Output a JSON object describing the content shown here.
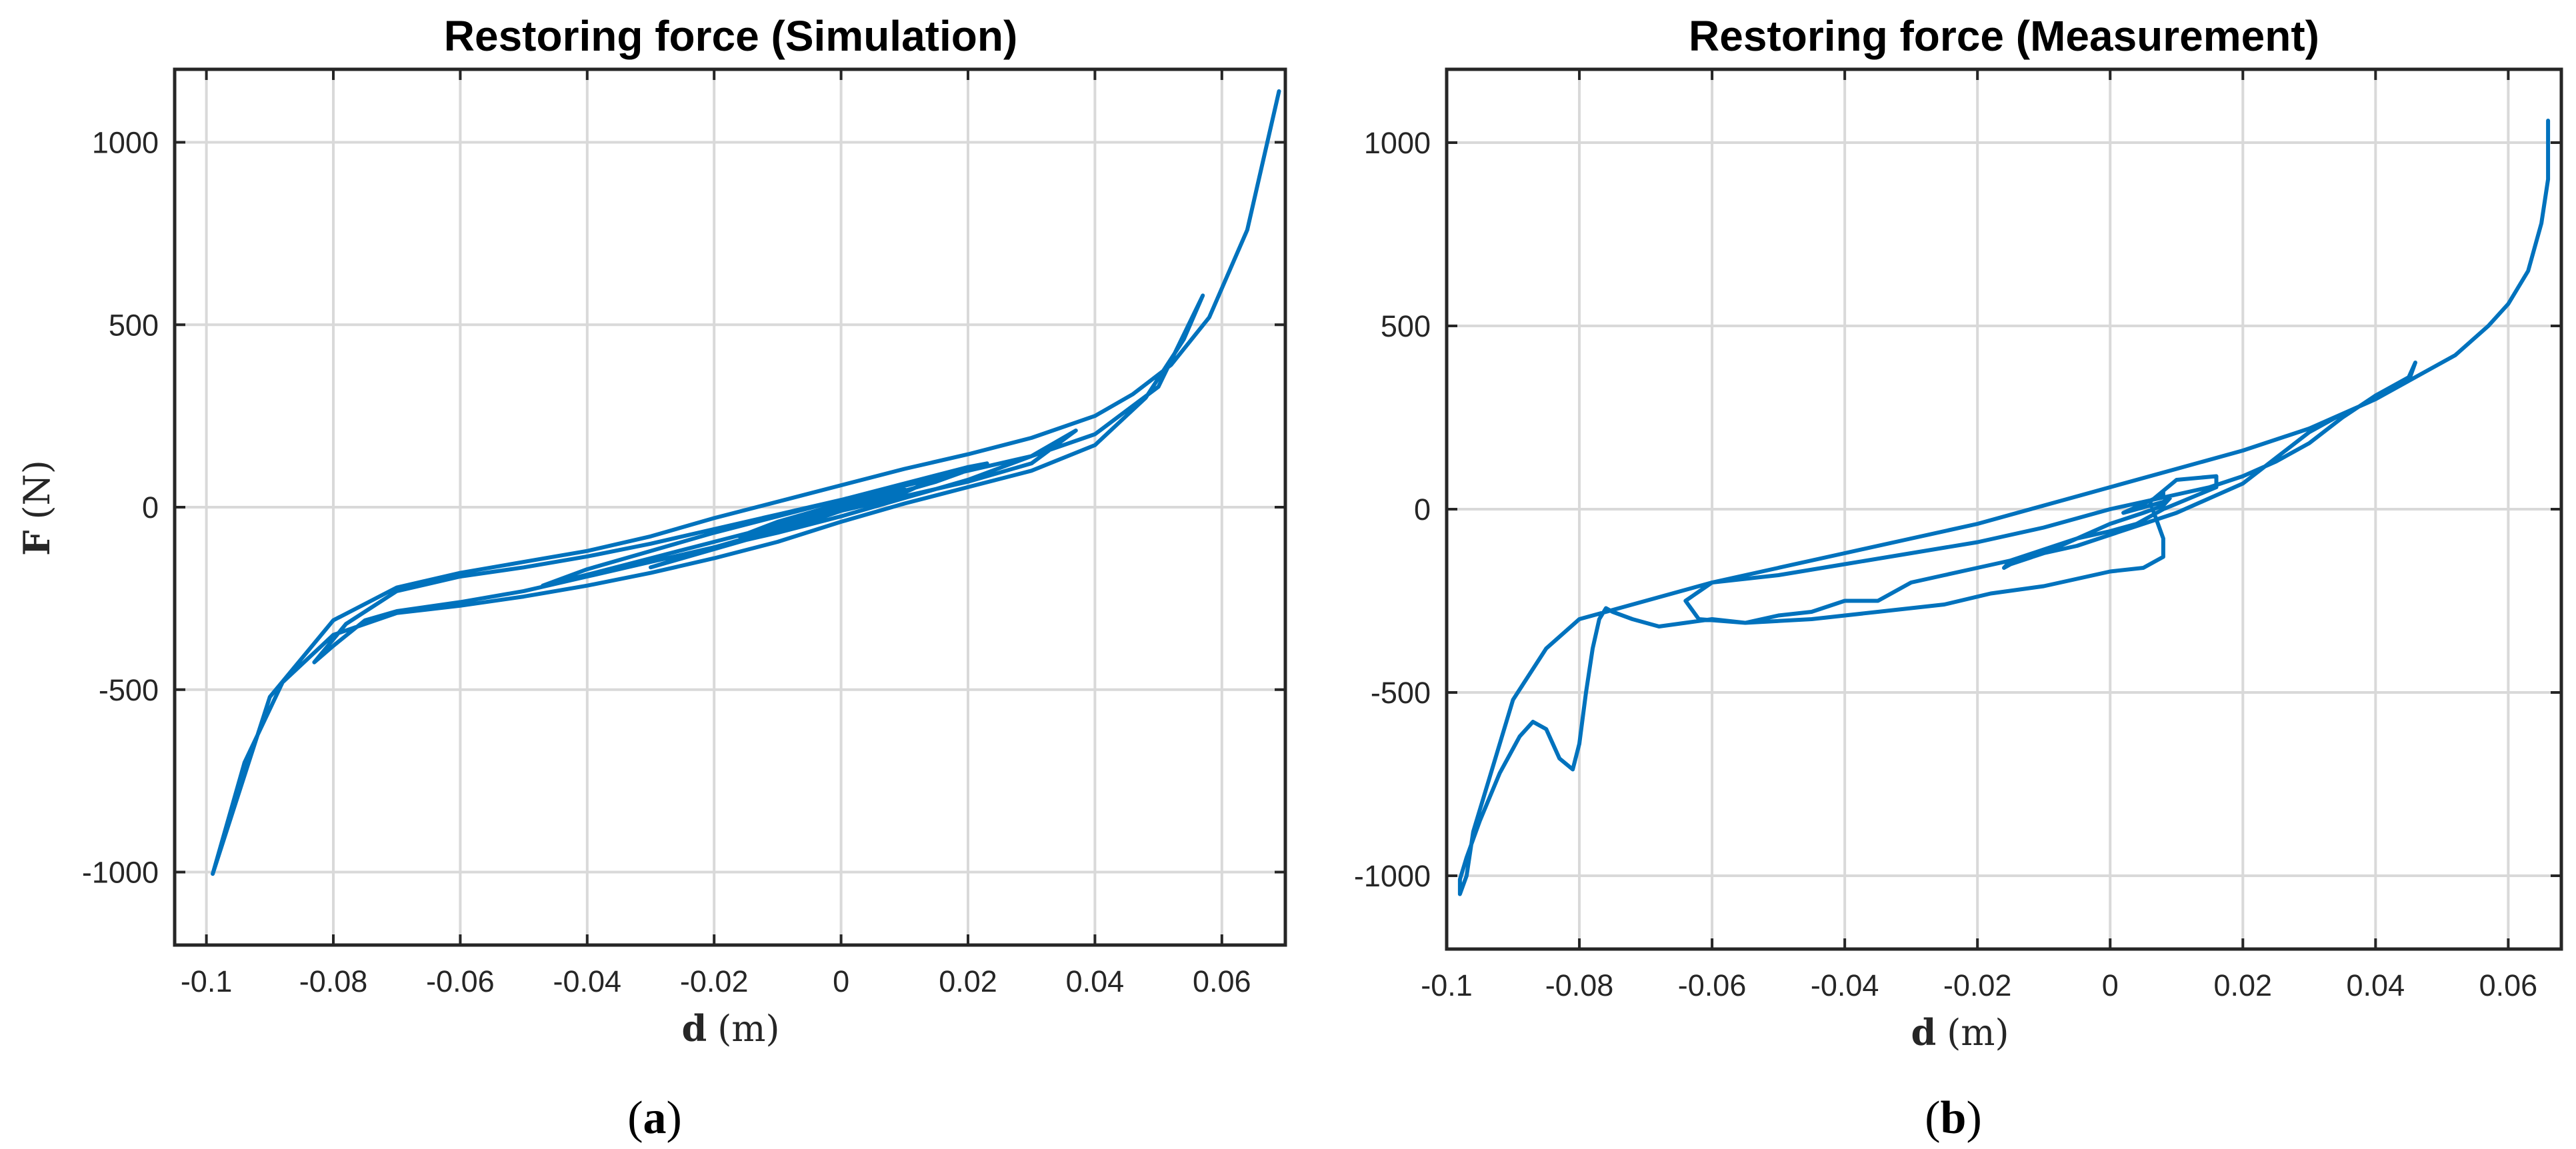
{
  "colors": {
    "series": "#0072BD"
  },
  "chart_data": [
    {
      "type": "line",
      "title": "Restoring force (Simulation)",
      "xlabel": "d (m)",
      "xlabel_symbol": "d",
      "xlabel_unit": "(m)",
      "ylabel": "F (N)",
      "ylabel_symbol": "F",
      "ylabel_unit": "(N)",
      "panel_label": "(a)",
      "panel_letter": "a",
      "xlim": [
        -0.105,
        0.07
      ],
      "ylim": [
        -1200,
        1200
      ],
      "xticks": [
        -0.1,
        -0.08,
        -0.06,
        -0.04,
        -0.02,
        0,
        0.02,
        0.04,
        0.06
      ],
      "xtick_labels": [
        "-0.1",
        "-0.08",
        "-0.06",
        "-0.04",
        "-0.02",
        "0",
        "0.02",
        "0.04",
        "0.06"
      ],
      "yticks": [
        -1000,
        -500,
        0,
        500,
        1000
      ],
      "ytick_labels": [
        "-1000",
        "-500",
        "0",
        "500",
        "1000"
      ],
      "grid": true,
      "series": [
        {
          "name": "restoring force (simulation)",
          "x": [
            0.069,
            0.064,
            0.058,
            0.052,
            0.046,
            0.04,
            0.03,
            0.02,
            0.01,
            0.0,
            -0.01,
            -0.02,
            -0.03,
            -0.04,
            -0.05,
            -0.06,
            -0.07,
            -0.08,
            -0.09,
            -0.099,
            -0.094,
            -0.088,
            -0.08,
            -0.07,
            -0.06,
            -0.05,
            -0.04,
            -0.03,
            -0.02,
            -0.01,
            0.0,
            0.01,
            0.02,
            0.03,
            0.04,
            0.048,
            0.054,
            0.057,
            0.05,
            0.04,
            0.03,
            0.02,
            0.01,
            0.0,
            -0.01,
            -0.02,
            -0.03,
            -0.04,
            -0.05,
            -0.06,
            -0.07,
            -0.078,
            -0.083,
            -0.08,
            -0.075,
            -0.07,
            -0.06,
            -0.05,
            -0.04,
            -0.03,
            -0.02,
            -0.01,
            0.0,
            0.01,
            0.02,
            0.03,
            0.037,
            0.03,
            0.02,
            0.01,
            0.0,
            -0.01,
            -0.02,
            -0.03,
            -0.04,
            -0.047,
            -0.04,
            -0.03,
            -0.02,
            -0.01,
            0.0,
            0.01,
            0.02,
            0.023,
            0.015,
            0.005,
            -0.005,
            -0.015,
            -0.025,
            -0.03,
            -0.02,
            -0.01,
            0.0,
            0.01,
            0.015,
            0.008,
            0.0,
            -0.008,
            -0.016,
            -0.01,
            0.0,
            0.008,
            0.01,
            0.004,
            -0.004,
            -0.008,
            -0.004,
            0.004,
            0.005,
            0.0,
            -0.004,
            0.0
          ],
          "y": [
            1140,
            760,
            520,
            390,
            310,
            250,
            190,
            145,
            105,
            60,
            15,
            -30,
            -80,
            -120,
            -150,
            -180,
            -220,
            -310,
            -520,
            -1005,
            -700,
            -480,
            -350,
            -290,
            -270,
            -245,
            -215,
            -180,
            -140,
            -95,
            -40,
            10,
            55,
            100,
            170,
            300,
            460,
            580,
            330,
            200,
            140,
            100,
            60,
            20,
            -20,
            -60,
            -100,
            -135,
            -165,
            -190,
            -230,
            -320,
            -425,
            -380,
            -310,
            -285,
            -260,
            -230,
            -190,
            -150,
            -110,
            -70,
            -25,
            25,
            75,
            140,
            210,
            120,
            70,
            30,
            -10,
            -50,
            -95,
            -140,
            -185,
            -215,
            -170,
            -120,
            -70,
            -25,
            20,
            65,
            110,
            120,
            70,
            20,
            -40,
            -90,
            -140,
            -165,
            -110,
            -60,
            -10,
            40,
            80,
            50,
            10,
            -40,
            -80,
            -40,
            10,
            45,
            50,
            15,
            -25,
            -45,
            -10,
            25,
            25,
            0,
            -20,
            0
          ]
        }
      ]
    },
    {
      "type": "line",
      "title": "Restoring force (Measurement)",
      "xlabel": "d (m)",
      "xlabel_symbol": "d",
      "xlabel_unit": "(m)",
      "ylabel": "",
      "panel_label": "(b)",
      "panel_letter": "b",
      "xlim": [
        -0.1,
        0.068
      ],
      "ylim": [
        -1200,
        1200
      ],
      "xticks": [
        -0.1,
        -0.08,
        -0.06,
        -0.04,
        -0.02,
        0,
        0.02,
        0.04,
        0.06
      ],
      "xtick_labels": [
        "-0.1",
        "-0.08",
        "-0.06",
        "-0.04",
        "-0.02",
        "0",
        "0.02",
        "0.04",
        "0.06"
      ],
      "yticks": [
        -1000,
        -500,
        0,
        500,
        1000
      ],
      "ytick_labels": [
        "-1000",
        "-500",
        "0",
        "500",
        "1000"
      ],
      "grid": true,
      "series": [
        {
          "name": "restoring force (measurement)",
          "x": [
            0.066,
            0.066,
            0.065,
            0.063,
            0.06,
            0.057,
            0.052,
            0.046,
            0.04,
            0.03,
            0.02,
            0.01,
            0.0,
            -0.01,
            -0.02,
            -0.03,
            -0.04,
            -0.05,
            -0.06,
            -0.07,
            -0.08,
            -0.085,
            -0.09,
            -0.093,
            -0.096,
            -0.097,
            -0.098,
            -0.098,
            -0.097,
            -0.095,
            -0.092,
            -0.089,
            -0.087,
            -0.085,
            -0.083,
            -0.081,
            -0.08,
            -0.079,
            -0.078,
            -0.077,
            -0.076,
            -0.075,
            -0.072,
            -0.068,
            -0.064,
            -0.06,
            -0.055,
            -0.05,
            -0.045,
            -0.04,
            -0.035,
            -0.03,
            -0.025,
            -0.02,
            -0.015,
            -0.01,
            -0.005,
            0.0,
            0.005,
            0.01,
            0.015,
            0.02,
            0.025,
            0.03,
            0.035,
            0.04,
            0.045,
            0.046,
            0.045,
            0.04,
            0.035,
            0.03,
            0.025,
            0.02,
            0.015,
            0.01,
            0.005,
            0.0,
            -0.01,
            -0.02,
            -0.03,
            -0.04,
            -0.05,
            -0.06,
            -0.064,
            -0.062,
            -0.055,
            -0.045,
            -0.035,
            -0.025,
            -0.018,
            -0.01,
            -0.005,
            0.0,
            0.005,
            0.008,
            0.008,
            0.006,
            0.01,
            0.016,
            0.016,
            0.012,
            0.008,
            0.004,
            0.0,
            -0.005,
            -0.01,
            -0.015,
            -0.016,
            -0.015,
            -0.01,
            -0.005,
            0.0,
            0.005,
            0.008,
            0.009,
            0.008,
            0.004,
            0.002,
            0.008,
            0.008
          ],
          "y": [
            1060,
            900,
            780,
            650,
            560,
            500,
            420,
            360,
            300,
            220,
            160,
            110,
            60,
            10,
            -40,
            -80,
            -120,
            -160,
            -200,
            -250,
            -300,
            -380,
            -520,
            -700,
            -880,
            -1000,
            -1050,
            -1010,
            -950,
            -850,
            -720,
            -620,
            -580,
            -600,
            -680,
            -710,
            -640,
            -500,
            -380,
            -300,
            -270,
            -280,
            -300,
            -320,
            -310,
            -300,
            -310,
            -290,
            -280,
            -250,
            -250,
            -200,
            -180,
            -160,
            -140,
            -120,
            -100,
            -70,
            -40,
            -10,
            30,
            70,
            140,
            210,
            260,
            300,
            350,
            400,
            360,
            310,
            250,
            180,
            130,
            90,
            60,
            40,
            20,
            0,
            -50,
            -90,
            -120,
            -150,
            -180,
            -200,
            -250,
            -300,
            -310,
            -300,
            -280,
            -260,
            -230,
            -210,
            -190,
            -170,
            -160,
            -130,
            -80,
            20,
            80,
            90,
            60,
            30,
            0,
            -40,
            -60,
            -80,
            -110,
            -140,
            -160,
            -150,
            -120,
            -80,
            -40,
            -10,
            10,
            30,
            20,
            0,
            -10,
            40,
            50
          ]
        }
      ]
    }
  ]
}
